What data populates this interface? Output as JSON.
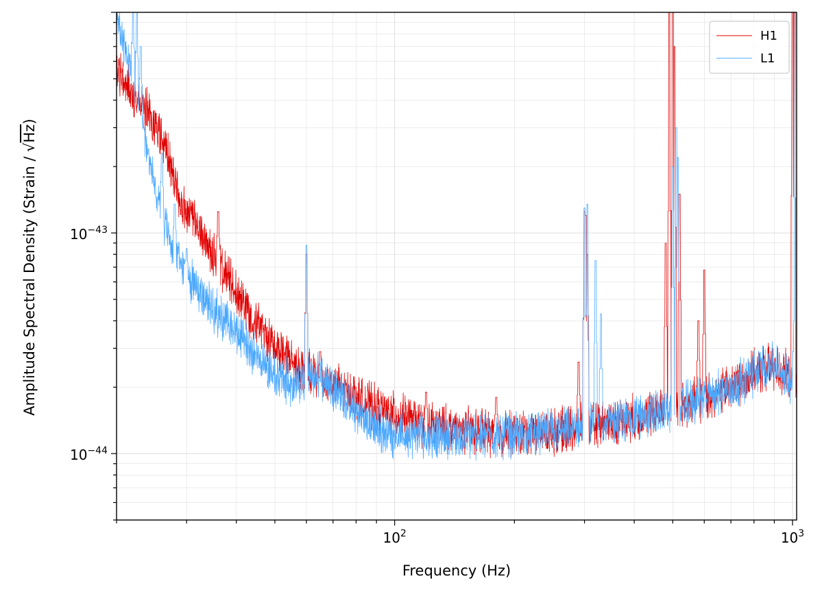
{
  "chart_data": {
    "type": "line",
    "xlabel": "Frequency (Hz)",
    "ylabel": "Amplitude Spectral Density (Strain / √Hz)",
    "ylabel_main": "Amplitude Spectral Density (Strain / ",
    "ylabel_radical": "√",
    "ylabel_hz": "Hz",
    "ylabel_close": ")",
    "x_scale": "log",
    "y_scale": "log",
    "xlim": [
      20,
      1024
    ],
    "ylim": [
      5e-45,
      1e-42
    ],
    "x_ticks": [
      {
        "value": 100,
        "base": "10",
        "exp": "2"
      },
      {
        "value": 1000,
        "base": "10",
        "exp": "3"
      }
    ],
    "y_ticks": [
      {
        "value": 1e-44,
        "base": "10",
        "exp": "−44"
      },
      {
        "value": 1e-43,
        "base": "10",
        "exp": "−43"
      }
    ],
    "grid": true,
    "legend_position": "top-right",
    "series": [
      {
        "name": "H1",
        "color": "#e00000",
        "floor": [
          [
            20,
            5.5e-43
          ],
          [
            22,
            4.3e-43
          ],
          [
            25,
            3.1e-43
          ],
          [
            27,
            2.2e-43
          ],
          [
            29,
            1.35e-43
          ],
          [
            31,
            1.15e-43
          ],
          [
            35,
            8e-44
          ],
          [
            40,
            5.4e-44
          ],
          [
            45,
            3.9e-44
          ],
          [
            50,
            3.1e-44
          ],
          [
            55,
            2.6e-44
          ],
          [
            60,
            2.35e-44
          ],
          [
            70,
            2.05e-44
          ],
          [
            80,
            1.8e-44
          ],
          [
            90,
            1.6e-44
          ],
          [
            100,
            1.5e-44
          ],
          [
            120,
            1.35e-44
          ],
          [
            150,
            1.28e-44
          ],
          [
            200,
            1.23e-44
          ],
          [
            250,
            1.25e-44
          ],
          [
            300,
            1.32e-44
          ],
          [
            400,
            1.45e-44
          ],
          [
            500,
            1.6e-44
          ],
          [
            600,
            1.78e-44
          ],
          [
            700,
            2e-44
          ],
          [
            800,
            2.3e-44
          ],
          [
            880,
            2.5e-44
          ],
          [
            950,
            2.35e-44
          ],
          [
            1024,
            2.05e-44
          ]
        ],
        "peaks": [
          [
            36,
            1.25e-43
          ],
          [
            60,
            8e-44
          ],
          [
            65,
            2.9e-44
          ],
          [
            120,
            1.9e-44
          ],
          [
            180,
            1.8e-44
          ],
          [
            290,
            2.6e-44
          ],
          [
            300,
            1.25e-43
          ],
          [
            302,
            1.2e-43
          ],
          [
            305,
            8e-44
          ],
          [
            480,
            9e-44
          ],
          [
            490,
            1e-42
          ],
          [
            500,
            1e-42
          ],
          [
            505,
            7e-43
          ],
          [
            520,
            1.5e-43
          ],
          [
            580,
            4e-44
          ],
          [
            600,
            6.8e-44
          ],
          [
            1000,
            1e-42
          ],
          [
            1010,
            1e-42
          ]
        ]
      },
      {
        "name": "L1",
        "color": "#4aa8ff",
        "floor": [
          [
            20,
            9e-43
          ],
          [
            21,
            7e-43
          ],
          [
            22,
            5e-43
          ],
          [
            23,
            3.4e-43
          ],
          [
            24,
            2.3e-43
          ],
          [
            25,
            1.6e-43
          ],
          [
            26,
            1.2e-43
          ],
          [
            27,
            9.5e-44
          ],
          [
            28,
            8e-44
          ],
          [
            30,
            6.5e-44
          ],
          [
            35,
            4.5e-44
          ],
          [
            40,
            3.5e-44
          ],
          [
            45,
            2.8e-44
          ],
          [
            50,
            2.3e-44
          ],
          [
            55,
            2.05e-44
          ],
          [
            60,
            2.1e-44
          ],
          [
            65,
            2.3e-44
          ],
          [
            70,
            2.05e-44
          ],
          [
            80,
            1.55e-44
          ],
          [
            90,
            1.3e-44
          ],
          [
            100,
            1.22e-44
          ],
          [
            120,
            1.2e-44
          ],
          [
            150,
            1.2e-44
          ],
          [
            200,
            1.22e-44
          ],
          [
            250,
            1.25e-44
          ],
          [
            300,
            1.32e-44
          ],
          [
            400,
            1.45e-44
          ],
          [
            500,
            1.6e-44
          ],
          [
            600,
            1.8e-44
          ],
          [
            700,
            2e-44
          ],
          [
            800,
            2.3e-44
          ],
          [
            880,
            2.6e-44
          ],
          [
            950,
            2.3e-44
          ],
          [
            1024,
            2.05e-44
          ]
        ],
        "peaks": [
          [
            22,
            1e-42
          ],
          [
            22.5,
            1e-42
          ],
          [
            23,
            7e-43
          ],
          [
            26,
            2.3e-43
          ],
          [
            28,
            1.35e-43
          ],
          [
            30,
            8.5e-44
          ],
          [
            60,
            8.8e-44
          ],
          [
            300,
            1.3e-43
          ],
          [
            305,
            1.35e-43
          ],
          [
            320,
            7.5e-44
          ],
          [
            330,
            4.3e-44
          ],
          [
            500,
            2e-43
          ],
          [
            510,
            3e-43
          ],
          [
            515,
            2.2e-43
          ],
          [
            1010,
            4e-44
          ],
          [
            1020,
            1e-42
          ]
        ]
      }
    ]
  }
}
